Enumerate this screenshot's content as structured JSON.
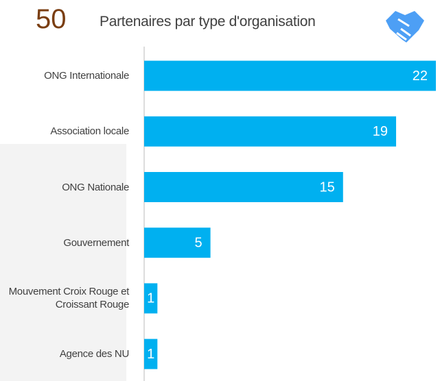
{
  "chart_data": {
    "type": "bar",
    "orientation": "horizontal",
    "headline": "50",
    "title": "Partenaires par type d'organisation",
    "categories": [
      "ONG Internationale",
      "Association locale",
      "ONG Nationale",
      "Gouvernement",
      "Mouvement Croix Rouge et Croissant Rouge",
      "Agence des NU"
    ],
    "values": [
      22,
      19,
      15,
      5,
      1,
      1
    ],
    "color": "#00b0f0",
    "xlim": [
      0,
      22
    ]
  }
}
